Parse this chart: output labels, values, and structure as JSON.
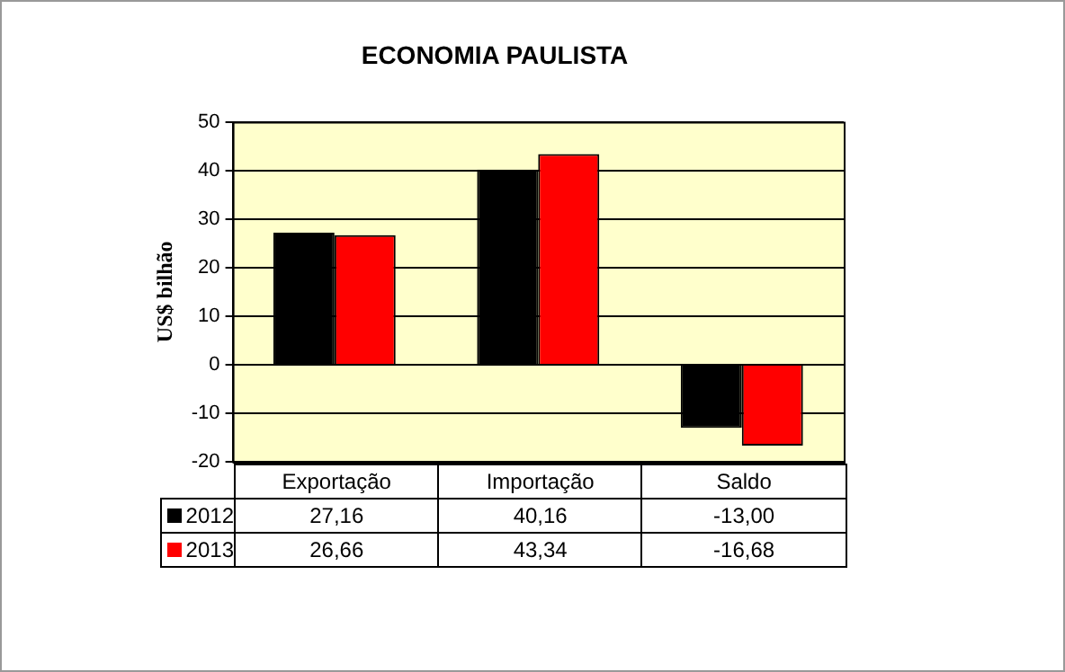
{
  "chart_data": {
    "type": "bar",
    "title": "ECONOMIA PAULISTA",
    "ylabel": "US$ bilhão",
    "categories": [
      "Exportação",
      "Importação",
      "Saldo"
    ],
    "series": [
      {
        "name": "2012",
        "color": "#000000",
        "values": [
          27.16,
          40.16,
          -13.0
        ],
        "value_labels": [
          "27,16",
          "40,16",
          "-13,00"
        ]
      },
      {
        "name": "2013",
        "color": "#ff0000",
        "values": [
          26.66,
          43.34,
          -16.68
        ],
        "value_labels": [
          "26,66",
          "43,34",
          "-16,68"
        ]
      }
    ],
    "ylim": [
      -20,
      50
    ],
    "yticks": [
      -20,
      -10,
      0,
      10,
      20,
      30,
      40,
      50
    ],
    "grid": "y",
    "legend": "bottom"
  }
}
